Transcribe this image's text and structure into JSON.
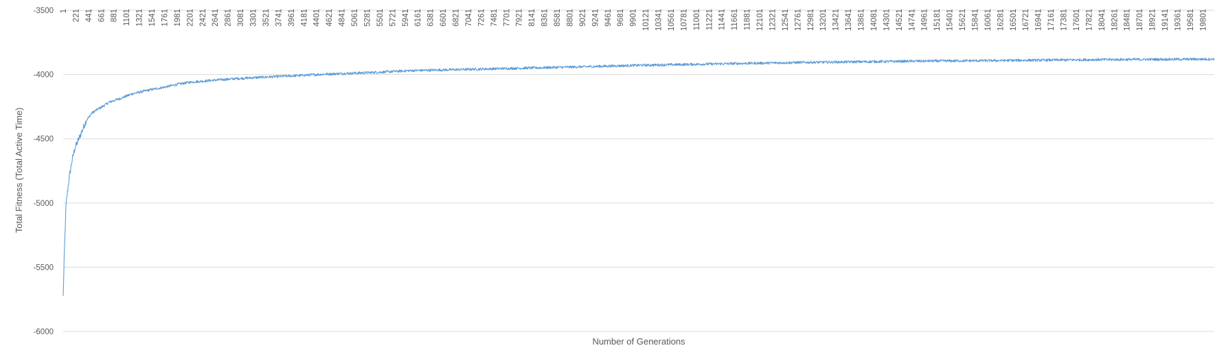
{
  "chart_data": {
    "type": "line",
    "title": "",
    "xlabel": "Number of Generations",
    "ylabel": "Total Fitness (Total Active Time)",
    "ylim": [
      -6000,
      -3500
    ],
    "yticks": [
      -3500,
      -4000,
      -4500,
      -5000,
      -5500,
      -6000
    ],
    "xlim": [
      1,
      20000
    ],
    "xtick_labels": [
      "1",
      "221",
      "441",
      "661",
      "881",
      "1101",
      "1321",
      "1541",
      "1761",
      "1981",
      "2201",
      "2421",
      "2641",
      "2861",
      "3081",
      "3301",
      "3521",
      "3741",
      "3961",
      "4181",
      "4401",
      "4621",
      "4841",
      "5061",
      "5281",
      "5501",
      "5721",
      "5941",
      "6161",
      "6381",
      "6601",
      "6821",
      "7041",
      "7261",
      "7481",
      "7701",
      "7921",
      "8141",
      "8361",
      "8581",
      "8801",
      "9021",
      "9241",
      "9461",
      "9681",
      "9901",
      "10121",
      "10341",
      "10561",
      "10781",
      "11001",
      "11221",
      "11441",
      "11661",
      "11881",
      "12101",
      "12321",
      "12541",
      "12761",
      "12981",
      "13201",
      "13421",
      "13641",
      "13861",
      "14081",
      "14301",
      "14521",
      "14741",
      "14961",
      "15181",
      "15401",
      "15621",
      "15841",
      "16061",
      "16281",
      "16501",
      "16721",
      "16941",
      "17161",
      "17381",
      "17601",
      "17821",
      "18041",
      "18261",
      "18481",
      "18701",
      "18921",
      "19141",
      "19361",
      "19581",
      "19801"
    ],
    "grid": "horizontal",
    "legend": "none",
    "line_color": "#5b9bd5",
    "series": [
      {
        "x": [
          1,
          20,
          50,
          100,
          150,
          200,
          300,
          400,
          500,
          600,
          700,
          800,
          1000,
          1200,
          1500,
          1800,
          2000,
          2200,
          2600,
          3000,
          3500,
          4000,
          4500,
          5000,
          5500,
          6000,
          7000,
          8000,
          9000,
          10000,
          11000,
          12000,
          13000,
          14000,
          15000,
          16000,
          17000,
          18000,
          19000,
          20000
        ],
        "values": [
          -5730,
          -5400,
          -5020,
          -4820,
          -4680,
          -4580,
          -4470,
          -4360,
          -4300,
          -4270,
          -4245,
          -4215,
          -4185,
          -4150,
          -4120,
          -4095,
          -4075,
          -4060,
          -4045,
          -4032,
          -4020,
          -4010,
          -3998,
          -3990,
          -3982,
          -3970,
          -3960,
          -3950,
          -3940,
          -3928,
          -3920,
          -3912,
          -3905,
          -3900,
          -3895,
          -3892,
          -3888,
          -3884,
          -3882,
          -3880
        ]
      }
    ]
  }
}
